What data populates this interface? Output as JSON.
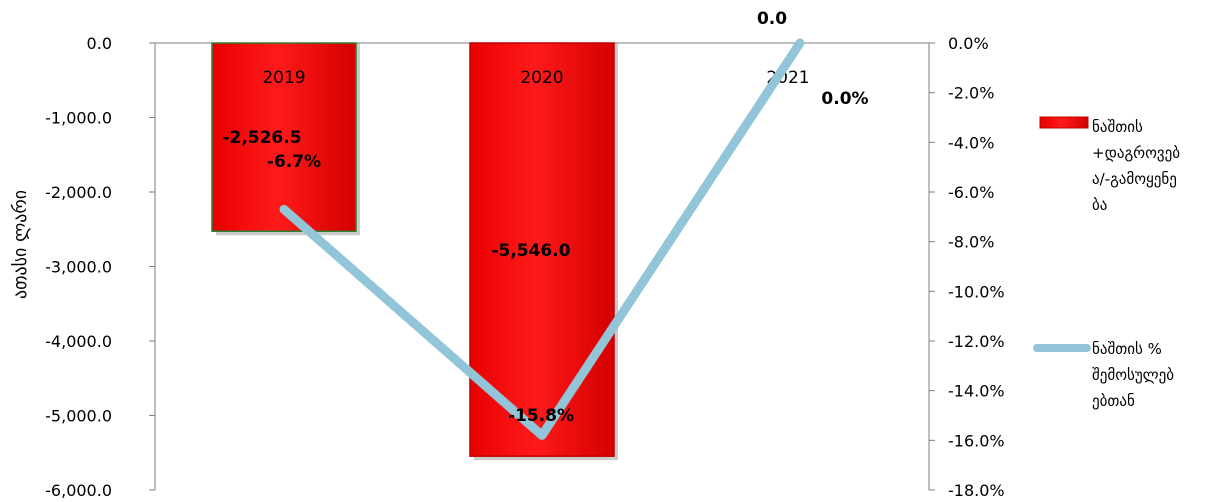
{
  "chart_data": {
    "type": "bar+line",
    "title": "",
    "categories": [
      "2019",
      "2020",
      "2021"
    ],
    "ylabel": "ათასი ლარი",
    "y_left": {
      "ylim": [
        -6000,
        0
      ],
      "ticks": [
        0,
        -1000,
        -2000,
        -3000,
        -4000,
        -5000,
        -6000
      ],
      "tick_labels": [
        "0.0",
        "-1,000.0",
        "-2,000.0",
        "-3,000.0",
        "-4,000.0",
        "-5,000.0",
        "-6,000.0"
      ]
    },
    "y_right": {
      "ylim": [
        -18,
        0
      ],
      "ticks": [
        0,
        -2,
        -4,
        -6,
        -8,
        -10,
        -12,
        -14,
        -16,
        -18
      ],
      "tick_labels": [
        "0.0%",
        "-2.0%",
        "-4.0%",
        "-6.0%",
        "-8.0%",
        "-10.0%",
        "-12.0%",
        "-14.0%",
        "-16.0%",
        "-18.0%"
      ]
    },
    "series": [
      {
        "name": "ნაშთის +დაგროვებ ა/-გამოყენე ბა",
        "legend_lines": [
          "ნაშთის",
          "+დაგროვებ",
          "ა/-გამოყენე",
          "ბა"
        ],
        "type": "bar",
        "axis": "left",
        "values": [
          -2526.5,
          -5546.0,
          0.0
        ],
        "labels": [
          "-2,526.5",
          "-5,546.0",
          "0.0"
        ],
        "color": "#ff0000"
      },
      {
        "name": "ნაშთის % შემოსულებ ებთან",
        "legend_lines": [
          "ნაშთის %",
          "შემოსულებ",
          "ებთან"
        ],
        "type": "line",
        "axis": "right",
        "values": [
          -6.7,
          -15.8,
          0.0
        ],
        "labels": [
          "-6.7%",
          "-15.8%",
          "0.0%"
        ],
        "color": "#92c5d8"
      }
    ],
    "legend_position": "right",
    "grid": false
  }
}
